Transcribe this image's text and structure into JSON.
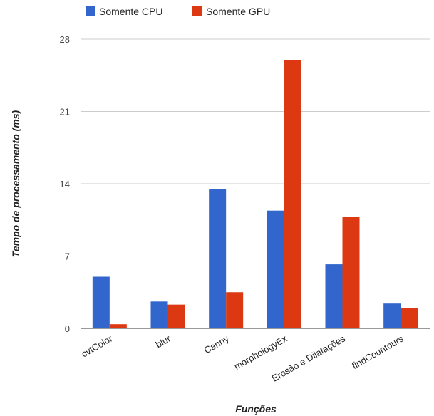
{
  "chart_data": {
    "type": "bar",
    "categories": [
      "cvtColor",
      "blur",
      "Canny",
      "morphologyEx",
      "Erosão e Dilatações",
      "findCountours"
    ],
    "series": [
      {
        "name": "Somente CPU",
        "color": "#3366cc",
        "values": [
          5.0,
          2.6,
          13.5,
          11.4,
          6.2,
          2.4
        ]
      },
      {
        "name": "Somente GPU",
        "color": "#dc3912",
        "values": [
          0.4,
          2.3,
          3.5,
          26.0,
          10.8,
          2.0
        ]
      }
    ],
    "xlabel": "Funções",
    "ylabel": "Tempo de processamento (ms)",
    "yticks": [
      0,
      7,
      14,
      21,
      28
    ],
    "ylim": [
      0,
      28
    ],
    "grid": true,
    "legend_position": "top-left"
  }
}
